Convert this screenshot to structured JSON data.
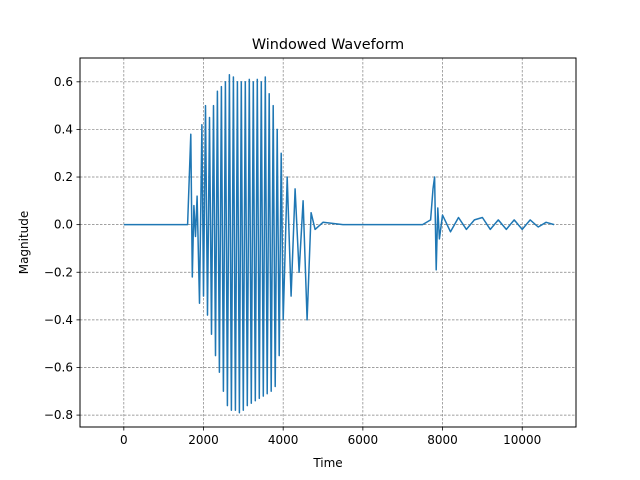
{
  "chart_data": {
    "type": "line",
    "title": "Windowed Waveform",
    "xlabel": "Time",
    "ylabel": "Magnitude",
    "xlim": [
      -1100,
      11350
    ],
    "ylim": [
      -0.85,
      0.7
    ],
    "xticks": [
      0,
      2000,
      4000,
      6000,
      8000,
      10000
    ],
    "xtick_labels": [
      "0",
      "2000",
      "4000",
      "6000",
      "8000",
      "10000"
    ],
    "yticks": [
      0.6,
      0.4,
      0.2,
      0.0,
      -0.2,
      -0.4,
      -0.6,
      -0.8
    ],
    "ytick_labels": [
      "0.6",
      "0.4",
      "0.2",
      "0.0",
      "−0.2",
      "−0.4",
      "−0.6",
      "−0.8"
    ],
    "grid": true,
    "color": "#1f77b4",
    "series": [
      {
        "x": [
          0,
          1600,
          1680,
          1720,
          1760,
          1800,
          1840,
          1900,
          1960,
          2000,
          2050,
          2100,
          2150,
          2200,
          2250,
          2300,
          2350,
          2400,
          2450,
          2500,
          2550,
          2600,
          2650,
          2700,
          2750,
          2800,
          2850,
          2900,
          2950,
          3000,
          3050,
          3100,
          3150,
          3200,
          3250,
          3300,
          3350,
          3400,
          3450,
          3500,
          3550,
          3600,
          3650,
          3700,
          3750,
          3800,
          3850,
          3900,
          3950,
          4000,
          4100,
          4200,
          4300,
          4400,
          4500,
          4600,
          4700,
          4800,
          5000,
          5500,
          6000,
          6500,
          7000,
          7500,
          7700,
          7760,
          7800,
          7840,
          7880,
          7920,
          8000,
          8200,
          8400,
          8600,
          8800,
          9000,
          9200,
          9400,
          9600,
          9800,
          10000,
          10200,
          10400,
          10600,
          10800
        ],
        "y": [
          0.0,
          0.0,
          0.38,
          -0.22,
          0.08,
          -0.05,
          0.12,
          -0.33,
          0.42,
          -0.3,
          0.5,
          -0.38,
          0.45,
          -0.46,
          0.5,
          -0.55,
          0.56,
          -0.62,
          0.58,
          -0.7,
          0.6,
          -0.76,
          0.63,
          -0.78,
          0.62,
          -0.78,
          0.6,
          -0.79,
          0.6,
          -0.78,
          0.6,
          -0.76,
          0.61,
          -0.75,
          0.6,
          -0.74,
          0.61,
          -0.73,
          0.6,
          -0.72,
          0.62,
          -0.71,
          0.55,
          -0.7,
          0.5,
          -0.68,
          0.4,
          -0.55,
          0.3,
          -0.4,
          0.2,
          -0.3,
          0.15,
          -0.2,
          0.1,
          -0.4,
          0.05,
          -0.02,
          0.01,
          0.0,
          0.0,
          0.0,
          0.0,
          0.0,
          0.02,
          0.15,
          0.2,
          -0.19,
          0.07,
          -0.06,
          0.04,
          -0.03,
          0.03,
          -0.02,
          0.02,
          0.03,
          -0.02,
          0.02,
          -0.02,
          0.02,
          -0.02,
          0.02,
          -0.01,
          0.01,
          0.0
        ]
      }
    ]
  }
}
